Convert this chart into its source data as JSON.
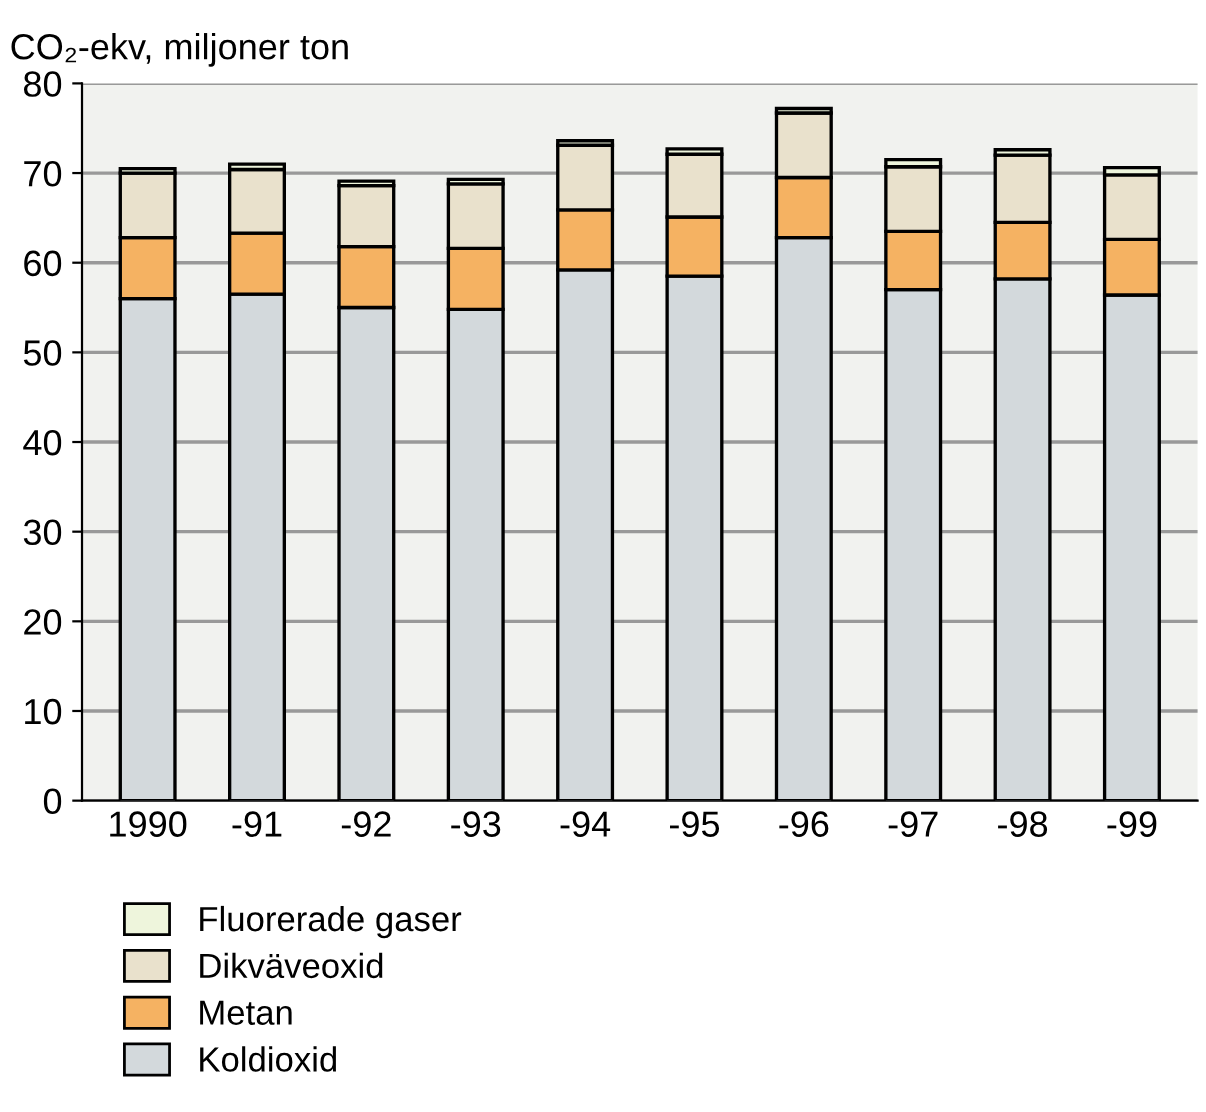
{
  "chart_data": {
    "type": "bar",
    "stacked": true,
    "ylabel": "CO₂-ekv, miljoner ton",
    "categories": [
      "1990",
      "-91",
      "-92",
      "-93",
      "-94",
      "-95",
      "-96",
      "-97",
      "-98",
      "-99"
    ],
    "series": [
      {
        "name": "Koldioxid",
        "color": "#d3d9dc",
        "values": [
          56,
          56.5,
          55,
          54.8,
          59.2,
          58.5,
          62.8,
          57,
          58.2,
          56.4
        ]
      },
      {
        "name": "Metan",
        "color": "#f5b262",
        "values": [
          6.8,
          6.8,
          6.8,
          6.8,
          6.7,
          6.6,
          6.7,
          6.5,
          6.3,
          6.2
        ]
      },
      {
        "name": "Dikväveoxid",
        "color": "#e9e1cc",
        "values": [
          7.2,
          7.1,
          6.8,
          7.2,
          7.2,
          7.0,
          7.2,
          7.2,
          7.5,
          7.2
        ]
      },
      {
        "name": "Fluorerade gaser",
        "color": "#eef5dc",
        "values": [
          0.5,
          0.6,
          0.5,
          0.5,
          0.5,
          0.6,
          0.5,
          0.8,
          0.6,
          0.8
        ]
      }
    ],
    "ylim": [
      0,
      80
    ],
    "yticks": [
      0,
      10,
      20,
      30,
      40,
      50,
      60,
      70,
      80
    ],
    "grid": "y",
    "legend": "bottom left"
  }
}
